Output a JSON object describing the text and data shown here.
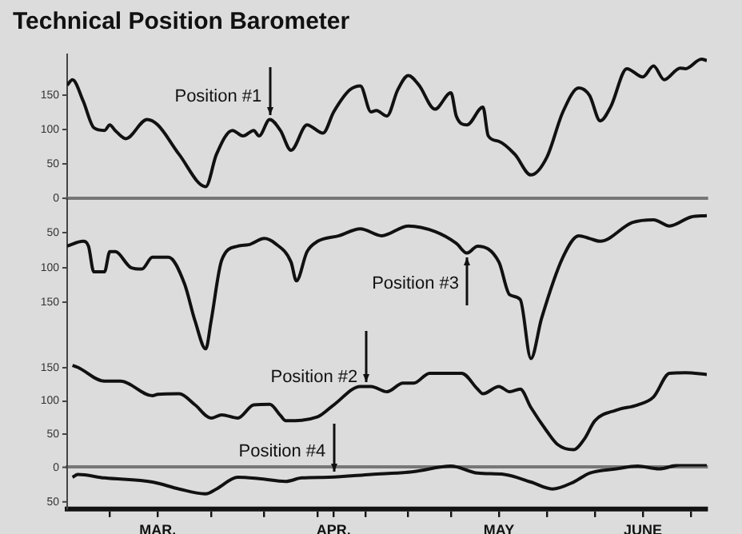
{
  "chart_data": [
    {
      "type": "line",
      "title": "Technical Position Barometer",
      "x": [
        "--02-26",
        "--02-27",
        "--03-01",
        "--03-03",
        "--03-05",
        "--03-06",
        "--03-07",
        "--03-09",
        "--03-13",
        "--03-15",
        "--03-19",
        "--03-24",
        "--03-26",
        "--03-29",
        "--03-31",
        "--04-02",
        "--04-03",
        "--04-05",
        "--04-07",
        "--04-09",
        "--04-12",
        "--04-15",
        "--04-17",
        "--04-20",
        "--04-22",
        "--04-24",
        "--04-25",
        "--04-27",
        "--04-29",
        "--05-01",
        "--05-03",
        "--05-06",
        "--05-09",
        "--05-10",
        "--05-12",
        "--05-15",
        "--05-16",
        "--05-18",
        "--05-21",
        "--05-24",
        "--05-27",
        "--05-30",
        "--06-02",
        "--06-04",
        "--06-06",
        "--06-08",
        "--06-11",
        "--06-14",
        "--06-16",
        "--06-18",
        "--06-21",
        "--06-22",
        "--06-25",
        "--06-26"
      ],
      "series": [
        {
          "color": "#111111",
          "values": [
            165,
            173,
            142,
            103,
            99,
            107,
            99,
            87,
            115,
            107,
            64,
            17,
            64,
            99,
            91,
            99,
            91,
            115,
            99,
            70,
            107,
            95,
            126,
            158,
            164,
            126,
            128,
            120,
            158,
            179,
            165,
            130,
            154,
            120,
            107,
            133,
            91,
            83,
            64,
            34,
            60,
            126,
            161,
            150,
            113,
            134,
            189,
            177,
            193,
            173,
            190,
            189,
            203,
            201
          ]
        }
      ],
      "xlim": [
        "--02-26",
        "--06-26"
      ],
      "ylim": [
        0,
        210
      ],
      "yticks": [
        0,
        50,
        100,
        150
      ],
      "tick_labels": "y",
      "annotations": [
        {
          "text": "Position #1",
          "x": "--04-05",
          "y": 115
        }
      ]
    },
    {
      "type": "line",
      "x": [
        "--02-26",
        "--03-01",
        "--03-02",
        "--03-03",
        "--03-05",
        "--03-06",
        "--03-07",
        "--03-10",
        "--03-12",
        "--03-14",
        "--03-17",
        "--03-20",
        "--03-22",
        "--03-24",
        "--03-25",
        "--03-27",
        "--03-30",
        "--04-01",
        "--04-04",
        "--04-06",
        "--04-09",
        "--04-10",
        "--04-12",
        "--04-14",
        "--04-18",
        "--04-22",
        "--04-26",
        "--05-01",
        "--05-06",
        "--05-10",
        "--05-12",
        "--05-14",
        "--05-18",
        "--05-20",
        "--05-22",
        "--05-24",
        "--05-26",
        "--05-30",
        "--06-02",
        "--06-04",
        "--06-06",
        "--06-12",
        "--06-16",
        "--06-19",
        "--06-23",
        "--06-26"
      ],
      "series": [
        {
          "color": "#111111",
          "values": [
            69,
            62,
            69,
            106,
            106,
            77,
            77,
            100,
            102,
            85,
            85,
            123,
            177,
            217,
            177,
            89,
            69,
            67,
            58,
            65,
            92,
            119,
            77,
            62,
            54,
            44,
            54,
            40,
            48,
            65,
            79,
            69,
            92,
            139,
            146,
            231,
            173,
            85,
            54,
            58,
            62,
            35,
            31,
            40,
            27,
            25
          ]
        }
      ],
      "xlim": [
        "--02-26",
        "--06-26"
      ],
      "ylim": [
        235,
        0
      ],
      "yticks": [
        50,
        100,
        150
      ],
      "tick_labels": "y",
      "annotations": [
        {
          "text": "Position #3",
          "x": "--05-12",
          "y": 79
        }
      ]
    },
    {
      "type": "line",
      "x": [
        "--02-27",
        "--02-28",
        "--03-05",
        "--03-08",
        "--03-14",
        "--03-15",
        "--03-19",
        "--03-22",
        "--03-25",
        "--03-27",
        "--03-30",
        "--04-02",
        "--04-05",
        "--04-07",
        "--04-08",
        "--04-14",
        "--04-17",
        "--04-22",
        "--04-24",
        "--04-27",
        "--04-30",
        "--05-02",
        "--05-05",
        "--05-11",
        "--05-14",
        "--05-15",
        "--05-18",
        "--05-20",
        "--05-22",
        "--05-24",
        "--05-27",
        "--05-29",
        "--06-01",
        "--06-03",
        "--06-05",
        "--06-09",
        "--06-13",
        "--06-16",
        "--06-19",
        "--06-22",
        "--06-26"
      ],
      "series": [
        {
          "color": "#111111",
          "values": [
            154,
            151,
            130,
            130,
            108,
            110,
            111,
            94,
            74,
            79,
            74,
            94,
            95,
            78,
            70,
            76,
            94,
            122,
            122,
            114,
            127,
            127,
            142,
            142,
            118,
            111,
            122,
            114,
            118,
            90,
            54,
            34,
            26,
            42,
            70,
            86,
            94,
            106,
            142,
            143,
            140
          ]
        }
      ],
      "xlim": [
        "--02-26",
        "--06-26"
      ],
      "ylim": [
        0,
        165
      ],
      "yticks": [
        50,
        100,
        150
      ],
      "tick_labels": "y",
      "annotations": [
        {
          "text": "Position #2",
          "x": "--04-23",
          "y": 122
        }
      ]
    },
    {
      "type": "line",
      "x": [
        "--02-27",
        "--02-28",
        "--03-05",
        "--03-14",
        "--03-19",
        "--03-24",
        "--03-26",
        "--03-30",
        "--04-03",
        "--04-08",
        "--04-11",
        "--04-16",
        "--04-24",
        "--05-02",
        "--05-09",
        "--05-14",
        "--05-19",
        "--05-24",
        "--05-28",
        "--06-01",
        "--06-04",
        "--06-09",
        "--06-13",
        "--06-17",
        "--06-21",
        "--06-26"
      ],
      "series": [
        {
          "color": "#111111",
          "values": [
            14,
            10,
            15,
            21,
            31,
            38,
            31,
            14,
            16,
            20,
            15,
            14,
            10,
            6,
            -2,
            8,
            10,
            21,
            31,
            21,
            8,
            2,
            -2,
            2,
            -4,
            -4
          ]
        }
      ],
      "xlim": [
        "--02-26",
        "--06-26"
      ],
      "ylim": [
        60,
        -5
      ],
      "yticks": [
        0,
        50
      ],
      "xticks": [
        {
          "value": "--03-06",
          "label": null
        },
        {
          "value": "--03-15",
          "label": "MAR."
        },
        {
          "value": "--03-25",
          "label": null
        },
        {
          "value": "--04-04",
          "label": null
        },
        {
          "value": "--04-14",
          "label": null
        },
        {
          "value": "--04-17",
          "label": "APR."
        },
        {
          "value": "--04-23",
          "label": null
        },
        {
          "value": "--05-01",
          "label": null
        },
        {
          "value": "--05-09",
          "label": null
        },
        {
          "value": "--05-18",
          "label": "MAY"
        },
        {
          "value": "--05-27",
          "label": null
        },
        {
          "value": "--06-05",
          "label": null
        },
        {
          "value": "--06-14",
          "label": "JUNE"
        },
        {
          "value": "--06-23",
          "label": null
        }
      ],
      "annotations": [
        {
          "text": "Position #4",
          "x": "--04-17",
          "y": 14
        }
      ]
    }
  ]
}
